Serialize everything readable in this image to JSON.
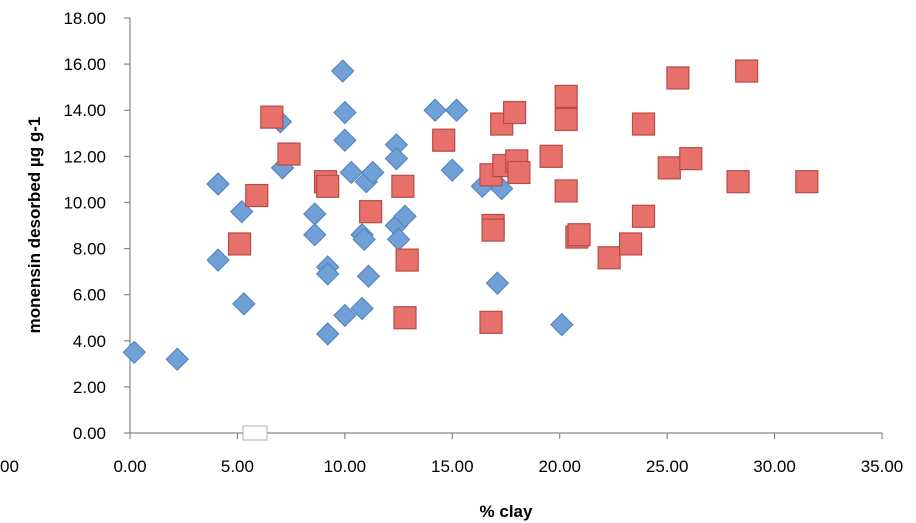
{
  "chart_data": {
    "type": "scatter",
    "title": "",
    "xlabel": "% clay",
    "ylabel": "monensin desorbed µg g-1",
    "xlim": [
      0,
      35
    ],
    "ylim": [
      0,
      18
    ],
    "x_ticks": [
      "0.00",
      "5.00",
      "10.00",
      "15.00",
      "20.00",
      "25.00",
      "30.00",
      "35.00"
    ],
    "x_tick_values": [
      0,
      5,
      10,
      15,
      20,
      25,
      30,
      35
    ],
    "x_partial_label": "00",
    "y_ticks": [
      "0.00",
      "2.00",
      "4.00",
      "6.00",
      "8.00",
      "10.00",
      "12.00",
      "14.00",
      "16.00",
      "18.00"
    ],
    "y_tick_values": [
      0,
      2,
      4,
      6,
      8,
      10,
      12,
      14,
      16,
      18
    ],
    "grid": false,
    "series": [
      {
        "marker": "diamond",
        "color": "#6fa0d8",
        "stroke": "#4f7fb5",
        "points": [
          [
            0.2,
            3.5
          ],
          [
            2.2,
            3.2
          ],
          [
            4.1,
            10.8
          ],
          [
            4.1,
            7.5
          ],
          [
            5.2,
            9.6
          ],
          [
            5.3,
            5.6
          ],
          [
            7.0,
            13.5
          ],
          [
            7.1,
            11.5
          ],
          [
            8.6,
            9.5
          ],
          [
            8.6,
            8.6
          ],
          [
            9.2,
            7.2
          ],
          [
            9.2,
            6.9
          ],
          [
            9.2,
            4.3
          ],
          [
            9.9,
            15.7
          ],
          [
            10.0,
            13.9
          ],
          [
            10.0,
            12.7
          ],
          [
            10.0,
            5.1
          ],
          [
            10.3,
            11.3
          ],
          [
            10.8,
            8.6
          ],
          [
            10.9,
            8.4
          ],
          [
            10.8,
            5.4
          ],
          [
            11.0,
            10.9
          ],
          [
            11.1,
            6.8
          ],
          [
            11.3,
            11.3
          ],
          [
            12.4,
            12.5
          ],
          [
            12.4,
            11.9
          ],
          [
            12.4,
            9.0
          ],
          [
            12.5,
            8.4
          ],
          [
            12.8,
            9.4
          ],
          [
            14.2,
            14.0
          ],
          [
            15.2,
            14.0
          ],
          [
            15.0,
            11.4
          ],
          [
            16.4,
            10.7
          ],
          [
            17.1,
            6.5
          ],
          [
            17.3,
            10.6
          ],
          [
            20.1,
            4.7
          ]
        ]
      },
      {
        "marker": "square",
        "color": "#e8706b",
        "stroke": "#b94a45",
        "points": [
          [
            5.1,
            8.2
          ],
          [
            5.9,
            10.3
          ],
          [
            6.6,
            13.7
          ],
          [
            7.4,
            12.1
          ],
          [
            9.1,
            10.9
          ],
          [
            9.2,
            10.7
          ],
          [
            11.2,
            9.6
          ],
          [
            12.7,
            10.7
          ],
          [
            12.8,
            5.0
          ],
          [
            12.9,
            7.5
          ],
          [
            14.6,
            12.7
          ],
          [
            16.8,
            11.2
          ],
          [
            16.9,
            9.0
          ],
          [
            16.9,
            8.8
          ],
          [
            16.8,
            4.8
          ],
          [
            17.3,
            13.4
          ],
          [
            17.4,
            11.6
          ],
          [
            17.9,
            13.9
          ],
          [
            18.0,
            11.8
          ],
          [
            18.1,
            11.3
          ],
          [
            19.6,
            12.0
          ],
          [
            20.3,
            14.6
          ],
          [
            20.3,
            13.6
          ],
          [
            20.3,
            10.5
          ],
          [
            20.8,
            8.5
          ],
          [
            20.9,
            8.6
          ],
          [
            22.3,
            7.6
          ],
          [
            23.3,
            8.2
          ],
          [
            23.9,
            13.4
          ],
          [
            23.9,
            9.4
          ],
          [
            25.1,
            11.5
          ],
          [
            25.5,
            15.4
          ],
          [
            26.1,
            11.9
          ],
          [
            28.3,
            10.9
          ],
          [
            28.7,
            15.7
          ],
          [
            31.5,
            10.9
          ]
        ]
      }
    ]
  }
}
